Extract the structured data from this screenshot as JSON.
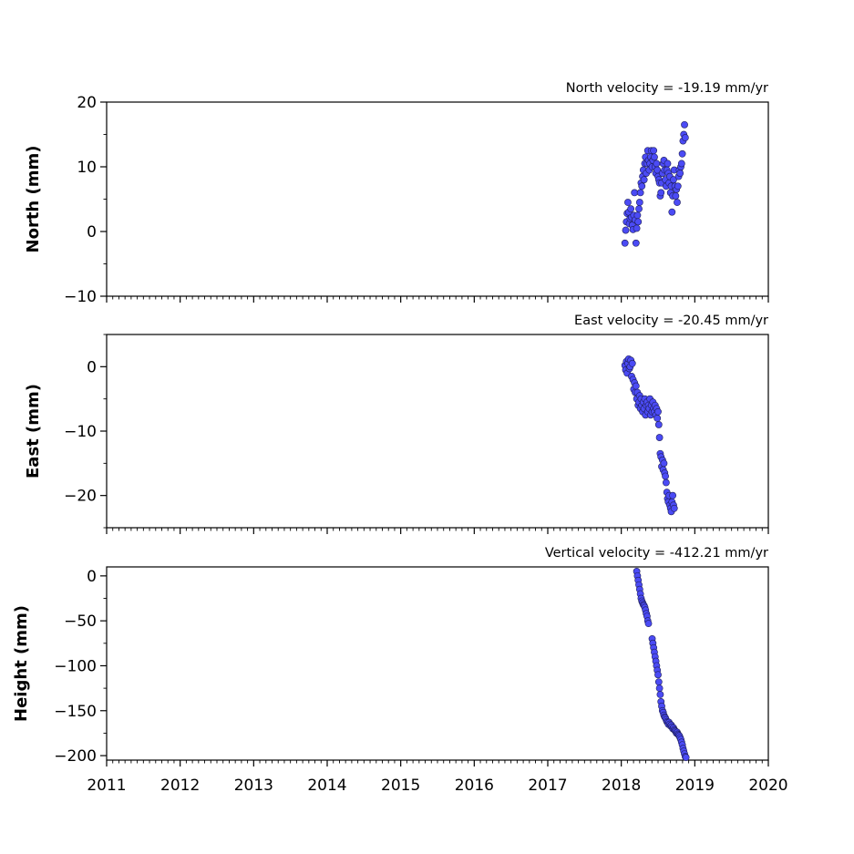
{
  "colors": {
    "marker_fill": "#4b4bf5",
    "marker_edge": "#1e1e5a",
    "axes": "#000000"
  },
  "chart_data": [
    {
      "type": "scatter",
      "title": "North velocity = -19.19 mm/yr",
      "ylabel": "North (mm)",
      "xlim": [
        2011,
        2020
      ],
      "ylim": [
        -10,
        20
      ],
      "yticks": [
        -10,
        0,
        10,
        20
      ],
      "ytick_labels": [
        "−10",
        "0",
        "10",
        "20"
      ],
      "show_xtick_labels": false,
      "points": [
        [
          2018.05,
          -1.8
        ],
        [
          2018.06,
          0.2
        ],
        [
          2018.07,
          1.5
        ],
        [
          2018.08,
          2.8
        ],
        [
          2018.09,
          4.5
        ],
        [
          2018.1,
          3.0
        ],
        [
          2018.11,
          1.2
        ],
        [
          2018.12,
          2.0
        ],
        [
          2018.13,
          3.5
        ],
        [
          2018.14,
          2.2
        ],
        [
          2018.15,
          1.0
        ],
        [
          2018.16,
          0.3
        ],
        [
          2018.17,
          2.5
        ],
        [
          2018.18,
          6.0
        ],
        [
          2018.19,
          1.8
        ],
        [
          2018.2,
          -1.8
        ],
        [
          2018.21,
          0.5
        ],
        [
          2018.22,
          2.5
        ],
        [
          2018.23,
          1.5
        ],
        [
          2018.24,
          3.5
        ],
        [
          2018.25,
          4.5
        ],
        [
          2018.26,
          6.0
        ],
        [
          2018.27,
          7.5
        ],
        [
          2018.28,
          7.0
        ],
        [
          2018.29,
          8.5
        ],
        [
          2018.3,
          9.5
        ],
        [
          2018.31,
          8.0
        ],
        [
          2018.32,
          10.5
        ],
        [
          2018.33,
          11.5
        ],
        [
          2018.34,
          9.0
        ],
        [
          2018.35,
          10.5
        ],
        [
          2018.36,
          12.5
        ],
        [
          2018.37,
          11.0
        ],
        [
          2018.38,
          9.5
        ],
        [
          2018.39,
          10.5
        ],
        [
          2018.4,
          11.5
        ],
        [
          2018.41,
          12.5
        ],
        [
          2018.42,
          10.0
        ],
        [
          2018.43,
          11.0
        ],
        [
          2018.44,
          12.5
        ],
        [
          2018.45,
          11.5
        ],
        [
          2018.46,
          10.0
        ],
        [
          2018.47,
          9.0
        ],
        [
          2018.48,
          10.5
        ],
        [
          2018.49,
          9.5
        ],
        [
          2018.5,
          8.5
        ],
        [
          2018.51,
          8.0
        ],
        [
          2018.52,
          7.5
        ],
        [
          2018.53,
          5.5
        ],
        [
          2018.54,
          6.0
        ],
        [
          2018.55,
          7.5
        ],
        [
          2018.56,
          9.0
        ],
        [
          2018.57,
          10.5
        ],
        [
          2018.58,
          11.0
        ],
        [
          2018.59,
          9.5
        ],
        [
          2018.6,
          8.0
        ],
        [
          2018.61,
          7.0
        ],
        [
          2018.62,
          9.5
        ],
        [
          2018.63,
          10.5
        ],
        [
          2018.64,
          9.0
        ],
        [
          2018.65,
          7.5
        ],
        [
          2018.66,
          8.5
        ],
        [
          2018.67,
          6.0
        ],
        [
          2018.68,
          7.0
        ],
        [
          2018.69,
          3.0
        ],
        [
          2018.7,
          5.5
        ],
        [
          2018.71,
          8.0
        ],
        [
          2018.72,
          9.5
        ],
        [
          2018.73,
          7.0
        ],
        [
          2018.74,
          5.5
        ],
        [
          2018.75,
          6.5
        ],
        [
          2018.76,
          4.5
        ],
        [
          2018.77,
          7.0
        ],
        [
          2018.78,
          8.5
        ],
        [
          2018.79,
          9.5
        ],
        [
          2018.8,
          9.0
        ],
        [
          2018.81,
          10.0
        ],
        [
          2018.82,
          10.5
        ],
        [
          2018.83,
          12.0
        ],
        [
          2018.84,
          14.0
        ],
        [
          2018.85,
          15.0
        ],
        [
          2018.86,
          16.5
        ],
        [
          2018.87,
          14.5
        ]
      ]
    },
    {
      "type": "scatter",
      "title": "East velocity = -20.45 mm/yr",
      "ylabel": "East (mm)",
      "xlim": [
        2011,
        2020
      ],
      "ylim": [
        -25,
        5
      ],
      "yticks": [
        -20,
        -10,
        0
      ],
      "ytick_labels": [
        "−20",
        "−10",
        "0"
      ],
      "show_xtick_labels": false,
      "points": [
        [
          2018.05,
          0.2
        ],
        [
          2018.06,
          -0.5
        ],
        [
          2018.07,
          0.8
        ],
        [
          2018.08,
          -1.0
        ],
        [
          2018.09,
          0.5
        ],
        [
          2018.1,
          1.2
        ],
        [
          2018.11,
          -0.3
        ],
        [
          2018.12,
          0.0
        ],
        [
          2018.13,
          1.0
        ],
        [
          2018.14,
          -1.5
        ],
        [
          2018.15,
          0.5
        ],
        [
          2018.16,
          -2.0
        ],
        [
          2018.17,
          -3.5
        ],
        [
          2018.18,
          -2.5
        ],
        [
          2018.19,
          -4.0
        ],
        [
          2018.2,
          -3.0
        ],
        [
          2018.21,
          -5.0
        ],
        [
          2018.22,
          -4.0
        ],
        [
          2018.23,
          -6.0
        ],
        [
          2018.24,
          -5.5
        ],
        [
          2018.25,
          -4.5
        ],
        [
          2018.26,
          -6.5
        ],
        [
          2018.27,
          -5.0
        ],
        [
          2018.28,
          -6.0
        ],
        [
          2018.29,
          -7.0
        ],
        [
          2018.3,
          -5.5
        ],
        [
          2018.31,
          -6.5
        ],
        [
          2018.32,
          -5.0
        ],
        [
          2018.33,
          -7.5
        ],
        [
          2018.34,
          -6.0
        ],
        [
          2018.35,
          -5.5
        ],
        [
          2018.36,
          -7.0
        ],
        [
          2018.37,
          -6.0
        ],
        [
          2018.38,
          -6.5
        ],
        [
          2018.39,
          -5.0
        ],
        [
          2018.4,
          -7.5
        ],
        [
          2018.41,
          -6.0
        ],
        [
          2018.42,
          -7.0
        ],
        [
          2018.43,
          -5.5
        ],
        [
          2018.44,
          -6.5
        ],
        [
          2018.45,
          -7.0
        ],
        [
          2018.46,
          -6.0
        ],
        [
          2018.47,
          -7.5
        ],
        [
          2018.48,
          -6.5
        ],
        [
          2018.49,
          -8.0
        ],
        [
          2018.5,
          -7.0
        ],
        [
          2018.51,
          -9.0
        ],
        [
          2018.52,
          -11.0
        ],
        [
          2018.53,
          -13.5
        ],
        [
          2018.54,
          -14.0
        ],
        [
          2018.55,
          -15.5
        ],
        [
          2018.56,
          -14.5
        ],
        [
          2018.57,
          -16.0
        ],
        [
          2018.58,
          -15.0
        ],
        [
          2018.59,
          -16.5
        ],
        [
          2018.6,
          -17.0
        ],
        [
          2018.61,
          -18.0
        ],
        [
          2018.62,
          -19.5
        ],
        [
          2018.63,
          -20.5
        ],
        [
          2018.64,
          -21.0
        ],
        [
          2018.65,
          -20.0
        ],
        [
          2018.66,
          -21.5
        ],
        [
          2018.67,
          -22.0
        ],
        [
          2018.68,
          -22.5
        ],
        [
          2018.69,
          -21.0
        ],
        [
          2018.7,
          -20.0
        ],
        [
          2018.71,
          -21.5
        ],
        [
          2018.72,
          -22.0
        ]
      ]
    },
    {
      "type": "scatter",
      "title": "Vertical velocity = -412.21 mm/yr",
      "ylabel": "Height (mm)",
      "xlim": [
        2011,
        2020
      ],
      "ylim": [
        -205,
        10
      ],
      "yticks": [
        -200,
        -150,
        -100,
        -50,
        0
      ],
      "ytick_labels": [
        "−200",
        "−150",
        "−100",
        "−50",
        "0"
      ],
      "show_xtick_labels": true,
      "xticks": [
        2011,
        2012,
        2013,
        2014,
        2015,
        2016,
        2017,
        2018,
        2019,
        2020
      ],
      "xtick_labels": [
        "2011",
        "2012",
        "2013",
        "2014",
        "2015",
        "2016",
        "2017",
        "2018",
        "2019",
        "2020"
      ],
      "points": [
        [
          2018.21,
          5
        ],
        [
          2018.22,
          0
        ],
        [
          2018.23,
          -5
        ],
        [
          2018.24,
          -10
        ],
        [
          2018.25,
          -15
        ],
        [
          2018.26,
          -20
        ],
        [
          2018.27,
          -25
        ],
        [
          2018.28,
          -28
        ],
        [
          2018.29,
          -30
        ],
        [
          2018.3,
          -32
        ],
        [
          2018.31,
          -33
        ],
        [
          2018.32,
          -35
        ],
        [
          2018.33,
          -38
        ],
        [
          2018.34,
          -42
        ],
        [
          2018.35,
          -45
        ],
        [
          2018.36,
          -50
        ],
        [
          2018.37,
          -53
        ],
        [
          2018.42,
          -70
        ],
        [
          2018.43,
          -75
        ],
        [
          2018.44,
          -80
        ],
        [
          2018.45,
          -85
        ],
        [
          2018.46,
          -90
        ],
        [
          2018.47,
          -95
        ],
        [
          2018.48,
          -100
        ],
        [
          2018.49,
          -105
        ],
        [
          2018.5,
          -110
        ],
        [
          2018.51,
          -118
        ],
        [
          2018.52,
          -125
        ],
        [
          2018.53,
          -132
        ],
        [
          2018.54,
          -140
        ],
        [
          2018.55,
          -145
        ],
        [
          2018.56,
          -150
        ],
        [
          2018.57,
          -152
        ],
        [
          2018.58,
          -155
        ],
        [
          2018.59,
          -157
        ],
        [
          2018.6,
          -158
        ],
        [
          2018.61,
          -160
        ],
        [
          2018.62,
          -162
        ],
        [
          2018.63,
          -163
        ],
        [
          2018.64,
          -165
        ],
        [
          2018.65,
          -163
        ],
        [
          2018.66,
          -165
        ],
        [
          2018.67,
          -167
        ],
        [
          2018.68,
          -166
        ],
        [
          2018.69,
          -168
        ],
        [
          2018.7,
          -170
        ],
        [
          2018.71,
          -169
        ],
        [
          2018.72,
          -171
        ],
        [
          2018.73,
          -172
        ],
        [
          2018.74,
          -173
        ],
        [
          2018.75,
          -175
        ],
        [
          2018.76,
          -174
        ],
        [
          2018.77,
          -176
        ],
        [
          2018.78,
          -177
        ],
        [
          2018.79,
          -178
        ],
        [
          2018.8,
          -180
        ],
        [
          2018.81,
          -182
        ],
        [
          2018.82,
          -185
        ],
        [
          2018.83,
          -188
        ],
        [
          2018.84,
          -192
        ],
        [
          2018.85,
          -195
        ],
        [
          2018.86,
          -198
        ],
        [
          2018.87,
          -201
        ],
        [
          2018.88,
          -202
        ]
      ]
    }
  ]
}
